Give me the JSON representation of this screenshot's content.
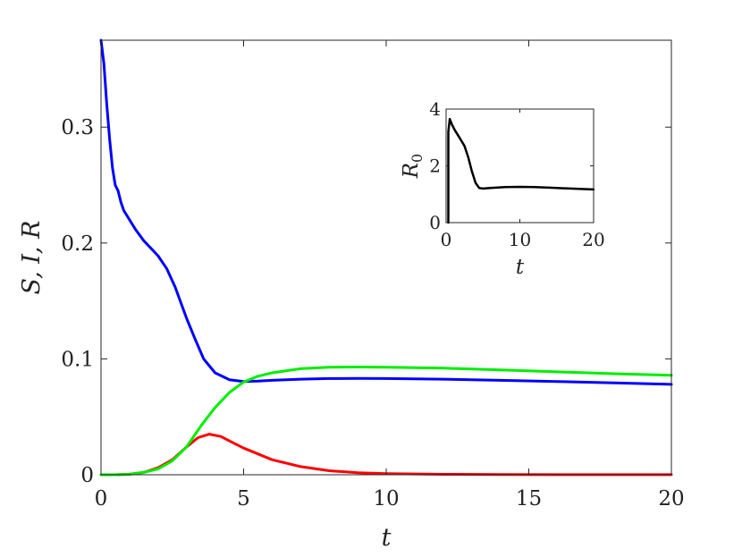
{
  "chart_data": [
    {
      "type": "line",
      "title": "",
      "xlabel": "t",
      "ylabel": "S, I, R",
      "xlim": [
        0,
        20
      ],
      "ylim": [
        0,
        0.375
      ],
      "xticks": [
        0,
        5,
        10,
        15,
        20
      ],
      "xtick_labels": [
        "0",
        "5",
        "10",
        "15",
        "20"
      ],
      "yticks": [
        0,
        0.1,
        0.2,
        0.3
      ],
      "ytick_labels": [
        "0",
        "0.1",
        "0.2",
        "0.3"
      ],
      "grid": false,
      "legend": "none",
      "series": [
        {
          "color": "#0000ff",
          "x": [
            0,
            0.1,
            0.2,
            0.3,
            0.4,
            0.5,
            0.6,
            0.7,
            0.8,
            1.0,
            1.2,
            1.5,
            2.0,
            2.3,
            2.6,
            3.0,
            3.3,
            3.6,
            4.0,
            4.5,
            5.0,
            5.5,
            6,
            7,
            8,
            9,
            10,
            12,
            14,
            16,
            18,
            20
          ],
          "y": [
            0.375,
            0.355,
            0.32,
            0.29,
            0.265,
            0.25,
            0.245,
            0.235,
            0.228,
            0.22,
            0.212,
            0.202,
            0.189,
            0.178,
            0.162,
            0.135,
            0.117,
            0.1,
            0.088,
            0.082,
            0.0805,
            0.0808,
            0.0815,
            0.0825,
            0.083,
            0.0832,
            0.083,
            0.0825,
            0.0815,
            0.0805,
            0.0793,
            0.078
          ]
        },
        {
          "color": "#ff0000",
          "x": [
            0,
            0.5,
            1.0,
            1.5,
            2.0,
            2.5,
            3.0,
            3.4,
            3.8,
            4.2,
            4.6,
            5.0,
            5.5,
            6,
            7,
            8,
            9,
            10,
            12,
            14,
            16,
            18,
            20
          ],
          "y": [
            0,
            0,
            0.0005,
            0.002,
            0.006,
            0.013,
            0.024,
            0.032,
            0.035,
            0.033,
            0.028,
            0.023,
            0.018,
            0.013,
            0.007,
            0.0035,
            0.0018,
            0.001,
            0.0004,
            0.0002,
            0.0001,
            0.0001,
            0.0001
          ]
        },
        {
          "color": "#00ee00",
          "x": [
            0,
            0.5,
            1.0,
            1.5,
            2.0,
            2.5,
            3.0,
            3.5,
            4.0,
            4.5,
            5.0,
            5.5,
            6,
            7,
            8,
            9,
            10,
            12,
            14,
            16,
            18,
            20
          ],
          "y": [
            0,
            0,
            0.0005,
            0.002,
            0.005,
            0.012,
            0.024,
            0.042,
            0.058,
            0.071,
            0.08,
            0.085,
            0.088,
            0.0915,
            0.0928,
            0.093,
            0.0928,
            0.092,
            0.0905,
            0.0888,
            0.0872,
            0.0858
          ]
        }
      ]
    },
    {
      "type": "line",
      "title": "",
      "xlabel": "t",
      "ylabel": "R0",
      "xlim": [
        0,
        20
      ],
      "ylim": [
        0,
        4
      ],
      "xticks": [
        0,
        10,
        20
      ],
      "xtick_labels": [
        "0",
        "10",
        "20"
      ],
      "yticks": [
        0,
        2,
        4
      ],
      "ytick_labels": [
        "0",
        "2",
        "4"
      ],
      "grid": false,
      "legend": "none",
      "series": [
        {
          "color": "#000000",
          "x": [
            0.3,
            0.3,
            0.5,
            0.8,
            1.2,
            1.8,
            2.5,
            3.0,
            3.5,
            4.0,
            4.5,
            5.0,
            6,
            8,
            10,
            12,
            14,
            16,
            18,
            20
          ],
          "y": [
            0,
            3.2,
            3.65,
            3.45,
            3.25,
            3.0,
            2.7,
            2.3,
            1.8,
            1.4,
            1.22,
            1.2,
            1.22,
            1.25,
            1.26,
            1.25,
            1.23,
            1.21,
            1.19,
            1.17
          ]
        }
      ]
    }
  ]
}
